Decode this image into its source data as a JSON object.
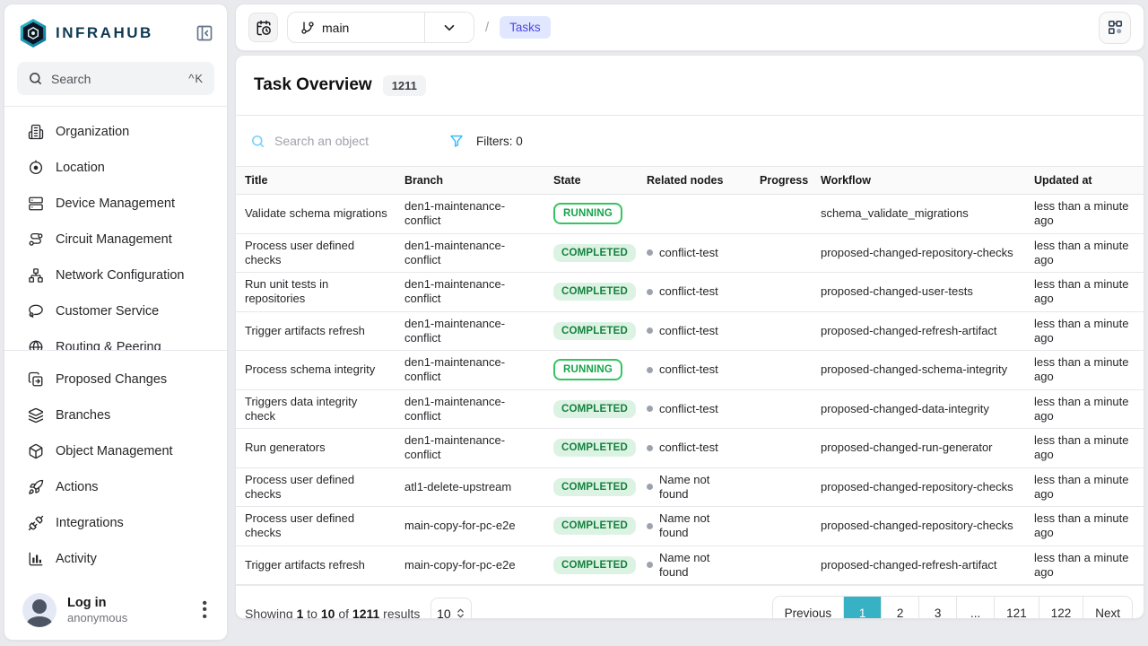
{
  "brand": {
    "name": "INFRAHUB"
  },
  "sidebar": {
    "search": {
      "placeholder": "Search",
      "shortcut": "^K"
    },
    "groups": [
      {
        "items": [
          {
            "label": "Organization",
            "icon": "building-icon"
          },
          {
            "label": "Location",
            "icon": "location-icon"
          },
          {
            "label": "Device Management",
            "icon": "server-icon"
          },
          {
            "label": "Circuit Management",
            "icon": "route-icon"
          },
          {
            "label": "Network Configuration",
            "icon": "network-icon"
          },
          {
            "label": "Customer Service",
            "icon": "lasso-icon"
          },
          {
            "label": "Routing & Peering",
            "icon": "globe-icon"
          }
        ]
      },
      {
        "items": [
          {
            "label": "Proposed Changes",
            "icon": "diff-copy-icon"
          },
          {
            "label": "Branches",
            "icon": "layers-icon"
          },
          {
            "label": "Object Management",
            "icon": "box-icon"
          },
          {
            "label": "Actions",
            "icon": "rocket-icon"
          },
          {
            "label": "Integrations",
            "icon": "plug-icon"
          },
          {
            "label": "Activity",
            "icon": "bar-chart-icon"
          }
        ]
      }
    ],
    "user": {
      "name": "Log in",
      "subtitle": "anonymous"
    }
  },
  "topbar": {
    "branch": "main",
    "breadcrumb_separator": "/",
    "breadcrumb": "Tasks"
  },
  "page": {
    "title": "Task Overview",
    "count": "1211"
  },
  "filter_bar": {
    "search_placeholder": "Search an object",
    "filters_label": "Filters: 0"
  },
  "table": {
    "columns": [
      "Title",
      "Branch",
      "State",
      "Related nodes",
      "Progress",
      "Workflow",
      "Updated at"
    ],
    "rows": [
      {
        "title": "Validate schema migrations",
        "branch": "den1-maintenance-conflict",
        "state": "RUNNING",
        "related": "",
        "progress": "",
        "workflow": "schema_validate_migrations",
        "updated": "less than a minute ago"
      },
      {
        "title": "Process user defined checks",
        "branch": "den1-maintenance-conflict",
        "state": "COMPLETED",
        "related": "conflict-test",
        "progress": "",
        "workflow": "proposed-changed-repository-checks",
        "updated": "less than a minute ago"
      },
      {
        "title": "Run unit tests in repositories",
        "branch": "den1-maintenance-conflict",
        "state": "COMPLETED",
        "related": "conflict-test",
        "progress": "",
        "workflow": "proposed-changed-user-tests",
        "updated": "less than a minute ago"
      },
      {
        "title": "Trigger artifacts refresh",
        "branch": "den1-maintenance-conflict",
        "state": "COMPLETED",
        "related": "conflict-test",
        "progress": "",
        "workflow": "proposed-changed-refresh-artifact",
        "updated": "less than a minute ago"
      },
      {
        "title": "Process schema integrity",
        "branch": "den1-maintenance-conflict",
        "state": "RUNNING",
        "related": "conflict-test",
        "progress": "",
        "workflow": "proposed-changed-schema-integrity",
        "updated": "less than a minute ago"
      },
      {
        "title": "Triggers data integrity check",
        "branch": "den1-maintenance-conflict",
        "state": "COMPLETED",
        "related": "conflict-test",
        "progress": "",
        "workflow": "proposed-changed-data-integrity",
        "updated": "less than a minute ago"
      },
      {
        "title": "Run generators",
        "branch": "den1-maintenance-conflict",
        "state": "COMPLETED",
        "related": "conflict-test",
        "progress": "",
        "workflow": "proposed-changed-run-generator",
        "updated": "less than a minute ago"
      },
      {
        "title": "Process user defined checks",
        "branch": "atl1-delete-upstream",
        "state": "COMPLETED",
        "related": "Name not found",
        "progress": "",
        "workflow": "proposed-changed-repository-checks",
        "updated": "less than a minute ago"
      },
      {
        "title": "Process user defined checks",
        "branch": "main-copy-for-pc-e2e",
        "state": "COMPLETED",
        "related": "Name not found",
        "progress": "",
        "workflow": "proposed-changed-repository-checks",
        "updated": "less than a minute ago"
      },
      {
        "title": "Trigger artifacts refresh",
        "branch": "main-copy-for-pc-e2e",
        "state": "COMPLETED",
        "related": "Name not found",
        "progress": "",
        "workflow": "proposed-changed-refresh-artifact",
        "updated": "less than a minute ago"
      }
    ]
  },
  "footer": {
    "summary": {
      "prefix": "Showing",
      "from": "1",
      "to_word": "to",
      "to": "10",
      "of_word": "of",
      "total": "1211",
      "suffix": "results"
    },
    "page_size": "10",
    "pagination": {
      "active": "1",
      "items": [
        "Previous",
        "1",
        "2",
        "3",
        "...",
        "121",
        "122",
        "Next"
      ]
    }
  },
  "colors": {
    "accent_teal": "#36b2c4",
    "running_green": "#16a34a",
    "completed_bg": "#dcf3e4",
    "completed_text": "#15803d",
    "breadcrumb_bg": "#e0e7ff",
    "breadcrumb_text": "#4f46e5",
    "filter_icon_blue": "#38bdf8",
    "brand_navy": "#0e3a53"
  }
}
